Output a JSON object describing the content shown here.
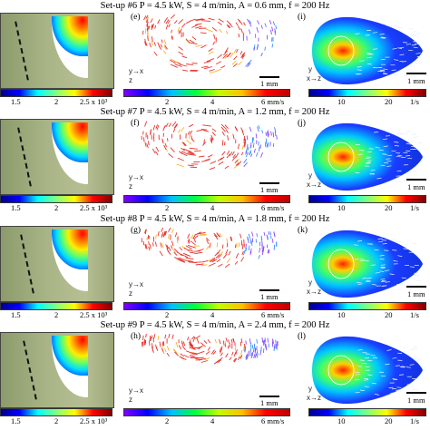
{
  "rows": [
    {
      "header": "Set-up #6 P = 4.5 kW, S = 4 m/min, A = 0.6 mm, f = 200 Hz",
      "label_mid": "(e)",
      "label_right": "(i)",
      "left_ticks": [
        "1.5",
        "2",
        "2.5 x 10³"
      ],
      "mid_ticks": [
        "2",
        "4",
        "6 mm/s"
      ],
      "right_ticks": [
        "10",
        "20",
        "1/s"
      ],
      "scale": "1 mm",
      "mid_axes": "y→x",
      "mid_axes_z": "z",
      "right_axes": "y",
      "right_axes_b": "x→z"
    },
    {
      "header": "Set-up #7 P = 4.5 kW, S = 4 m/min, A = 1.2 mm, f = 200 Hz",
      "label_mid": "(f)",
      "label_right": "(j)",
      "left_ticks": [
        "1.5",
        "2",
        "2.5 x 10³"
      ],
      "mid_ticks": [
        "2",
        "4",
        "6 mm/s"
      ],
      "right_ticks": [
        "10",
        "20",
        "1/s"
      ],
      "scale": "1 mm",
      "mid_axes": "y→x",
      "mid_axes_z": "z",
      "right_axes": "y",
      "right_axes_b": "x→z"
    },
    {
      "header": "Set-up #8 P = 4.5 kW, S = 4 m/min, A = 1.8 mm, f = 200 Hz",
      "label_mid": "(g)",
      "label_right": "(k)",
      "left_ticks": [
        "1.5",
        "2",
        "2.5 x 10³"
      ],
      "mid_ticks": [
        "2",
        "4",
        "6 mm/s"
      ],
      "right_ticks": [
        "10",
        "20",
        "1/s"
      ],
      "scale": "1 mm",
      "mid_axes": "y→x",
      "mid_axes_z": "z",
      "right_axes": "y",
      "right_axes_b": "x→z"
    },
    {
      "header": "Set-up #9 P = 4.5 kW, S = 4 m/min, A = 2.4 mm, f = 200 Hz",
      "label_mid": "(h)",
      "label_right": "(l)",
      "left_ticks": [
        "1.5",
        "2",
        "2.5 x 10³"
      ],
      "mid_ticks": [
        "2",
        "4",
        "6 mm/s"
      ],
      "right_ticks": [
        "10",
        "20",
        "1/s"
      ],
      "scale": "1 mm",
      "mid_axes": "y→x",
      "mid_axes_z": "z",
      "right_axes": "y",
      "right_axes_b": "x→z"
    }
  ],
  "colors": {
    "vector_main": "#e8322a",
    "vortex_center": "#ff2000",
    "vortex_outer": "#1a3cff"
  }
}
